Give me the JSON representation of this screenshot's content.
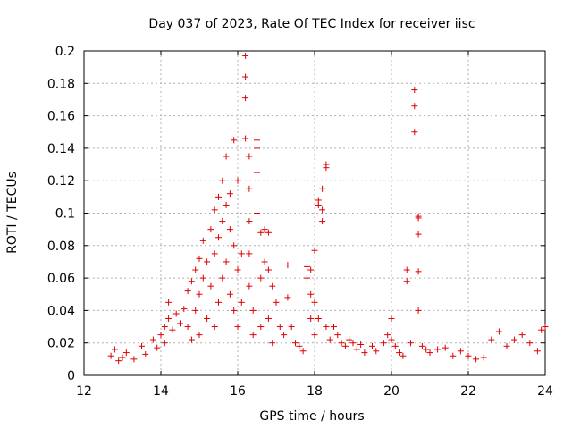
{
  "chart_data": {
    "type": "scatter",
    "title": "Day 037 of 2023, Rate Of TEC Index for receiver iisc",
    "xlabel": "GPS time / hours",
    "ylabel": "ROTI / TECUs",
    "xlim": [
      12,
      24
    ],
    "ylim": [
      0,
      0.2
    ],
    "xticks": [
      "12",
      "14",
      "16",
      "18",
      "20",
      "22",
      "24"
    ],
    "yticks": [
      "0",
      "0.02",
      "0.04",
      "0.06",
      "0.08",
      "0.1",
      "0.12",
      "0.14",
      "0.16",
      "0.18",
      "0.2"
    ],
    "grid": true,
    "marker": "plus",
    "color": "#e00000",
    "series": [
      {
        "points": [
          [
            12.7,
            0.012
          ],
          [
            12.8,
            0.016
          ],
          [
            12.9,
            0.009
          ],
          [
            13.0,
            0.011
          ],
          [
            13.1,
            0.014
          ],
          [
            13.3,
            0.01
          ],
          [
            13.5,
            0.018
          ],
          [
            13.6,
            0.013
          ],
          [
            13.8,
            0.022
          ],
          [
            13.9,
            0.017
          ],
          [
            14.0,
            0.025
          ],
          [
            14.1,
            0.03
          ],
          [
            14.1,
            0.02
          ],
          [
            14.2,
            0.045
          ],
          [
            14.2,
            0.035
          ],
          [
            14.3,
            0.028
          ],
          [
            14.4,
            0.038
          ],
          [
            14.5,
            0.032
          ],
          [
            14.6,
            0.041
          ],
          [
            14.7,
            0.052
          ],
          [
            14.7,
            0.03
          ],
          [
            14.8,
            0.058
          ],
          [
            14.8,
            0.022
          ],
          [
            14.9,
            0.065
          ],
          [
            14.9,
            0.04
          ],
          [
            15.0,
            0.072
          ],
          [
            15.0,
            0.05
          ],
          [
            15.0,
            0.025
          ],
          [
            15.1,
            0.083
          ],
          [
            15.1,
            0.06
          ],
          [
            15.2,
            0.07
          ],
          [
            15.2,
            0.035
          ],
          [
            15.3,
            0.09
          ],
          [
            15.3,
            0.055
          ],
          [
            15.4,
            0.102
          ],
          [
            15.4,
            0.075
          ],
          [
            15.4,
            0.03
          ],
          [
            15.5,
            0.11
          ],
          [
            15.5,
            0.085
          ],
          [
            15.5,
            0.045
          ],
          [
            15.6,
            0.12
          ],
          [
            15.6,
            0.095
          ],
          [
            15.6,
            0.06
          ],
          [
            15.7,
            0.135
          ],
          [
            15.7,
            0.105
          ],
          [
            15.7,
            0.07
          ],
          [
            15.8,
            0.112
          ],
          [
            15.8,
            0.09
          ],
          [
            15.8,
            0.05
          ],
          [
            15.9,
            0.145
          ],
          [
            15.9,
            0.08
          ],
          [
            15.9,
            0.04
          ],
          [
            16.0,
            0.12
          ],
          [
            16.0,
            0.065
          ],
          [
            16.0,
            0.03
          ],
          [
            16.1,
            0.075
          ],
          [
            16.1,
            0.045
          ],
          [
            16.2,
            0.197
          ],
          [
            16.2,
            0.184
          ],
          [
            16.2,
            0.171
          ],
          [
            16.2,
            0.146
          ],
          [
            16.3,
            0.135
          ],
          [
            16.3,
            0.115
          ],
          [
            16.3,
            0.095
          ],
          [
            16.3,
            0.075
          ],
          [
            16.3,
            0.055
          ],
          [
            16.4,
            0.04
          ],
          [
            16.4,
            0.025
          ],
          [
            16.5,
            0.145
          ],
          [
            16.5,
            0.14
          ],
          [
            16.5,
            0.125
          ],
          [
            16.5,
            0.1
          ],
          [
            16.6,
            0.088
          ],
          [
            16.6,
            0.06
          ],
          [
            16.6,
            0.03
          ],
          [
            16.7,
            0.09
          ],
          [
            16.7,
            0.07
          ],
          [
            16.8,
            0.088
          ],
          [
            16.8,
            0.065
          ],
          [
            16.8,
            0.035
          ],
          [
            16.9,
            0.055
          ],
          [
            16.9,
            0.02
          ],
          [
            17.0,
            0.045
          ],
          [
            17.1,
            0.03
          ],
          [
            17.2,
            0.025
          ],
          [
            17.3,
            0.068
          ],
          [
            17.3,
            0.048
          ],
          [
            17.4,
            0.03
          ],
          [
            17.5,
            0.02
          ],
          [
            17.6,
            0.018
          ],
          [
            17.7,
            0.015
          ],
          [
            17.8,
            0.067
          ],
          [
            17.8,
            0.06
          ],
          [
            17.9,
            0.065
          ],
          [
            17.9,
            0.05
          ],
          [
            17.9,
            0.035
          ],
          [
            18.0,
            0.077
          ],
          [
            18.0,
            0.045
          ],
          [
            18.0,
            0.025
          ],
          [
            18.1,
            0.108
          ],
          [
            18.1,
            0.105
          ],
          [
            18.1,
            0.035
          ],
          [
            18.2,
            0.095
          ],
          [
            18.2,
            0.102
          ],
          [
            18.2,
            0.115
          ],
          [
            18.3,
            0.128
          ],
          [
            18.3,
            0.13
          ],
          [
            18.3,
            0.03
          ],
          [
            18.4,
            0.022
          ],
          [
            18.5,
            0.03
          ],
          [
            18.6,
            0.025
          ],
          [
            18.7,
            0.02
          ],
          [
            18.8,
            0.018
          ],
          [
            18.9,
            0.022
          ],
          [
            19.0,
            0.02
          ],
          [
            19.1,
            0.016
          ],
          [
            19.2,
            0.019
          ],
          [
            19.3,
            0.014
          ],
          [
            19.5,
            0.018
          ],
          [
            19.6,
            0.015
          ],
          [
            19.8,
            0.02
          ],
          [
            19.9,
            0.025
          ],
          [
            20.0,
            0.022
          ],
          [
            20.0,
            0.035
          ],
          [
            20.1,
            0.018
          ],
          [
            20.2,
            0.014
          ],
          [
            20.3,
            0.012
          ],
          [
            20.4,
            0.058
          ],
          [
            20.4,
            0.065
          ],
          [
            20.5,
            0.02
          ],
          [
            20.6,
            0.176
          ],
          [
            20.6,
            0.166
          ],
          [
            20.6,
            0.15
          ],
          [
            20.7,
            0.098
          ],
          [
            20.7,
            0.097
          ],
          [
            20.7,
            0.087
          ],
          [
            20.7,
            0.064
          ],
          [
            20.7,
            0.04
          ],
          [
            20.8,
            0.018
          ],
          [
            20.9,
            0.016
          ],
          [
            21.0,
            0.014
          ],
          [
            21.2,
            0.016
          ],
          [
            21.4,
            0.017
          ],
          [
            21.6,
            0.012
          ],
          [
            21.8,
            0.015
          ],
          [
            22.0,
            0.012
          ],
          [
            22.2,
            0.01
          ],
          [
            22.4,
            0.011
          ],
          [
            22.6,
            0.022
          ],
          [
            22.8,
            0.027
          ],
          [
            23.0,
            0.018
          ],
          [
            23.2,
            0.022
          ],
          [
            23.4,
            0.025
          ],
          [
            23.6,
            0.02
          ],
          [
            23.8,
            0.015
          ],
          [
            23.9,
            0.028
          ],
          [
            24.0,
            0.03
          ]
        ]
      }
    ]
  }
}
